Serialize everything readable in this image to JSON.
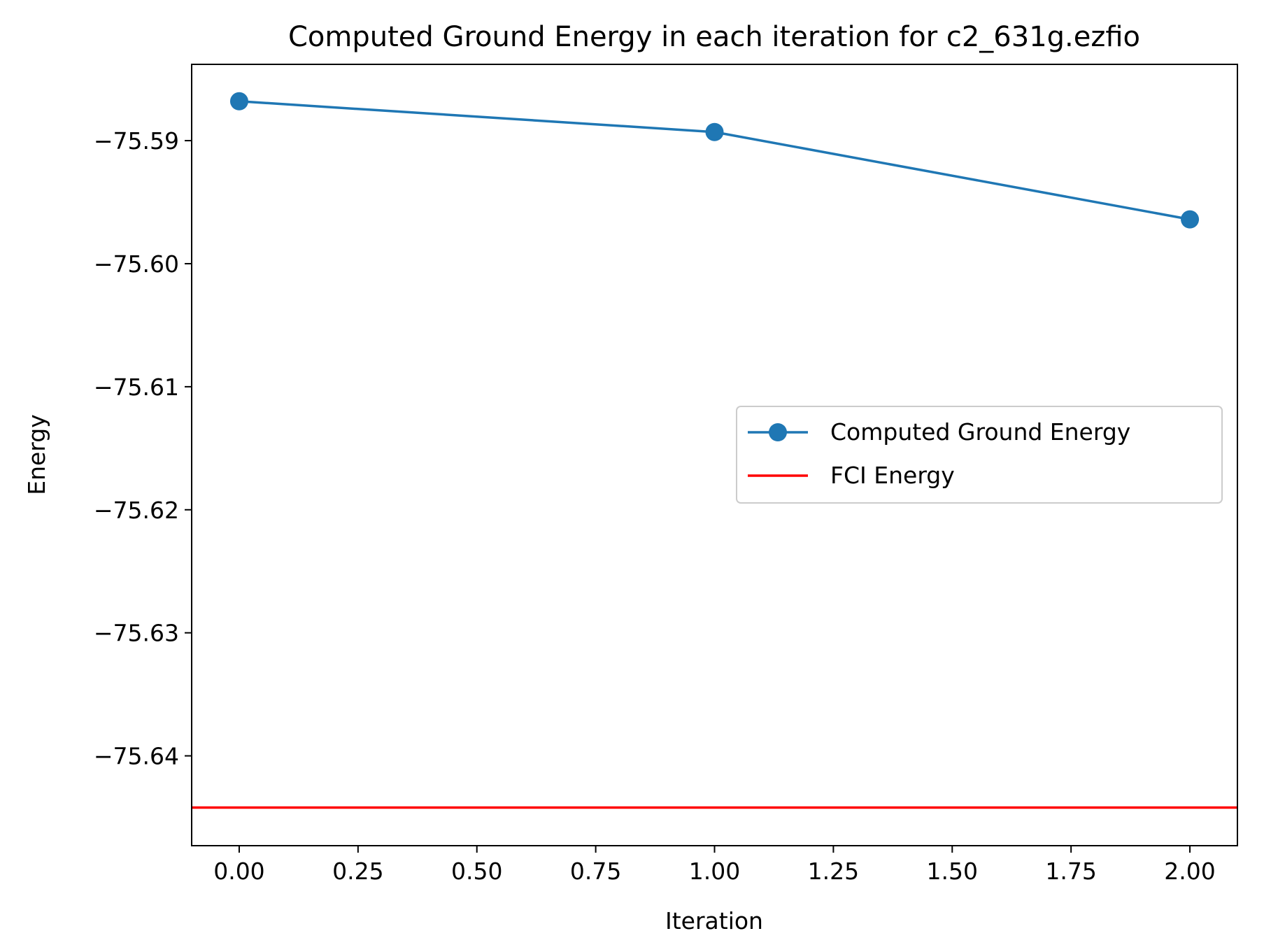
{
  "chart_data": {
    "type": "line",
    "title": "Computed Ground Energy in each iteration for c2_631g.ezfio",
    "xlabel": "Iteration",
    "ylabel": "Energy",
    "xlim": [
      -0.1,
      2.1
    ],
    "ylim": [
      -75.6473,
      -75.5838
    ],
    "xticks": [
      0.0,
      0.25,
      0.5,
      0.75,
      1.0,
      1.25,
      1.5,
      1.75,
      2.0
    ],
    "xtick_labels": [
      "0.00",
      "0.25",
      "0.50",
      "0.75",
      "1.00",
      "1.25",
      "1.50",
      "1.75",
      "2.00"
    ],
    "yticks": [
      -75.59,
      -75.6,
      -75.61,
      -75.62,
      -75.63,
      -75.64
    ],
    "ytick_labels": [
      "−75.59",
      "−75.60",
      "−75.61",
      "−75.62",
      "−75.63",
      "−75.64"
    ],
    "grid": false,
    "legend_position": "center-right",
    "series": [
      {
        "name": "Computed Ground Energy",
        "kind": "line-marker",
        "color": "#1f77b4",
        "x": [
          0,
          1,
          2
        ],
        "y": [
          -75.5868,
          -75.5893,
          -75.5964
        ]
      },
      {
        "name": "FCI Energy",
        "kind": "hline",
        "color": "#ff0000",
        "y": -75.6442
      }
    ]
  }
}
